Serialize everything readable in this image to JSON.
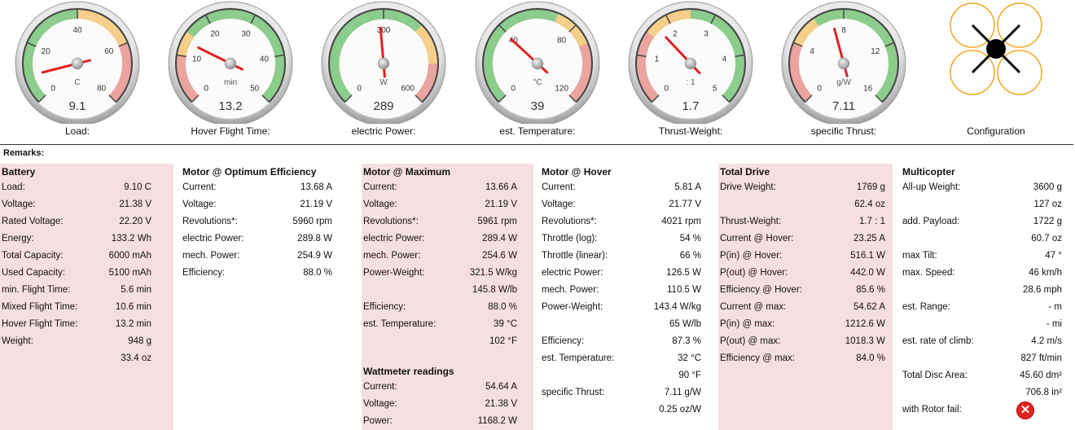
{
  "gauges": [
    {
      "id": "load",
      "label": "Load:",
      "unit": "C",
      "value": "9.1",
      "needle": 9.1,
      "min": 0,
      "max": 80,
      "ticks": [
        "0",
        "20",
        "40",
        "60",
        "80"
      ],
      "bands": [
        {
          "from": 0,
          "to": 40,
          "color": "#8ccc8c"
        },
        {
          "from": 40,
          "to": 60,
          "color": "#f5cf8a"
        },
        {
          "from": 60,
          "to": 80,
          "color": "#eca4a0"
        }
      ]
    },
    {
      "id": "hover-flight-time",
      "label": "Hover Flight Time:",
      "unit": "min",
      "value": "13.2",
      "needle": 13.2,
      "min": 0,
      "max": 50,
      "ticks": [
        "0",
        "10",
        "20",
        "30",
        "40",
        "50"
      ],
      "bands": [
        {
          "from": 0,
          "to": 10,
          "color": "#eca4a0"
        },
        {
          "from": 10,
          "to": 15,
          "color": "#f5cf8a"
        },
        {
          "from": 15,
          "to": 50,
          "color": "#8ccc8c"
        }
      ]
    },
    {
      "id": "electric-power",
      "label": "electric Power:",
      "unit": "W",
      "value": "289",
      "needle": 289,
      "min": 0,
      "max": 600,
      "ticks": [
        "0",
        "300",
        "600"
      ],
      "bands": [
        {
          "from": 0,
          "to": 400,
          "color": "#8ccc8c"
        },
        {
          "from": 400,
          "to": 500,
          "color": "#f5cf8a"
        },
        {
          "from": 500,
          "to": 600,
          "color": "#eca4a0"
        }
      ]
    },
    {
      "id": "est-temperature",
      "label": "est. Temperature:",
      "unit": "°C",
      "value": "39",
      "needle": 39,
      "min": 0,
      "max": 120,
      "ticks": [
        "0",
        "40",
        "80",
        "120"
      ],
      "bands": [
        {
          "from": 0,
          "to": 70,
          "color": "#8ccc8c"
        },
        {
          "from": 70,
          "to": 90,
          "color": "#f5cf8a"
        },
        {
          "from": 90,
          "to": 120,
          "color": "#eca4a0"
        }
      ]
    },
    {
      "id": "thrust-weight",
      "label": "Thrust-Weight:",
      "unit": ": 1",
      "value": "1.7",
      "needle": 1.7,
      "min": 0,
      "max": 5,
      "ticks": [
        "0",
        "1",
        "2",
        "3",
        "4",
        "5"
      ],
      "bands": [
        {
          "from": 0,
          "to": 1.5,
          "color": "#eca4a0"
        },
        {
          "from": 1.5,
          "to": 2.5,
          "color": "#f5cf8a"
        },
        {
          "from": 2.5,
          "to": 5,
          "color": "#8ccc8c"
        }
      ]
    },
    {
      "id": "specific-thrust",
      "label": "specific Thrust:",
      "unit": "g/W",
      "value": "7.11",
      "needle": 7.11,
      "min": 0,
      "max": 16,
      "ticks": [
        "0",
        "4",
        "8",
        "12",
        "16"
      ],
      "bands": [
        {
          "from": 0,
          "to": 4,
          "color": "#eca4a0"
        },
        {
          "from": 4,
          "to": 6,
          "color": "#f5cf8a"
        },
        {
          "from": 6,
          "to": 16,
          "color": "#8ccc8c"
        }
      ]
    }
  ],
  "config": {
    "label": "Configuration",
    "rotor_color": "#f5a623",
    "hub_color": "#000000"
  },
  "remarks_label": "Remarks:",
  "panels": {
    "battery": {
      "title": "Battery",
      "rows": [
        {
          "k": "Load:",
          "v": "9.10 C"
        },
        {
          "k": "Voltage:",
          "v": "21.38 V"
        },
        {
          "k": "Rated Voltage:",
          "v": "22.20 V"
        },
        {
          "k": "Energy:",
          "v": "133.2 Wh"
        },
        {
          "k": "Total Capacity:",
          "v": "6000 mAh"
        },
        {
          "k": "Used Capacity:",
          "v": "5100 mAh"
        },
        {
          "k": "min. Flight Time:",
          "v": "5.6 min"
        },
        {
          "k": "Mixed Flight Time:",
          "v": "10.6 min"
        },
        {
          "k": "Hover Flight Time:",
          "v": "13.2 min"
        },
        {
          "k": "Weight:",
          "v": "948 g"
        },
        {
          "k": "",
          "v": "33.4 oz"
        }
      ]
    },
    "motor_opt": {
      "title": "Motor @ Optimum Efficiency",
      "rows": [
        {
          "k": "Current:",
          "v": "13.68 A"
        },
        {
          "k": "Voltage:",
          "v": "21.19 V"
        },
        {
          "k": "Revolutions*:",
          "v": "5960 rpm"
        },
        {
          "k": "electric Power:",
          "v": "289.8 W"
        },
        {
          "k": "mech. Power:",
          "v": "254.9 W"
        },
        {
          "k": "Efficiency:",
          "v": "88.0 %"
        }
      ]
    },
    "motor_max": {
      "title": "Motor @ Maximum",
      "rows": [
        {
          "k": "Current:",
          "v": "13.66 A"
        },
        {
          "k": "Voltage:",
          "v": "21.19 V"
        },
        {
          "k": "Revolutions*:",
          "v": "5961 rpm"
        },
        {
          "k": "electric Power:",
          "v": "289.4 W"
        },
        {
          "k": "mech. Power:",
          "v": "254.6 W"
        },
        {
          "k": "Power-Weight:",
          "v": "321.5 W/kg"
        },
        {
          "k": "",
          "v": "145.8 W/lb"
        },
        {
          "k": "Efficiency:",
          "v": "88.0 %"
        },
        {
          "k": "est. Temperature:",
          "v": "39 °C"
        },
        {
          "k": "",
          "v": "102 °F"
        }
      ]
    },
    "wattmeter": {
      "title": "Wattmeter readings",
      "rows": [
        {
          "k": "Current:",
          "v": "54.64 A"
        },
        {
          "k": "Voltage:",
          "v": "21.38 V"
        },
        {
          "k": "Power:",
          "v": "1168.2 W"
        }
      ]
    },
    "motor_hover": {
      "title": "Motor @ Hover",
      "rows": [
        {
          "k": "Current:",
          "v": "5.81 A"
        },
        {
          "k": "Voltage:",
          "v": "21.77 V"
        },
        {
          "k": "Revolutions*:",
          "v": "4021 rpm"
        },
        {
          "k": "Throttle (log):",
          "v": "54 %"
        },
        {
          "k": "Throttle (linear):",
          "v": "66 %"
        },
        {
          "k": "electric Power:",
          "v": "126.5 W"
        },
        {
          "k": "mech. Power:",
          "v": "110.5 W"
        },
        {
          "k": "Power-Weight:",
          "v": "143.4 W/kg"
        },
        {
          "k": "",
          "v": "65 W/lb"
        },
        {
          "k": "Efficiency:",
          "v": "87.3 %"
        },
        {
          "k": "est. Temperature:",
          "v": "32 °C"
        },
        {
          "k": "",
          "v": "90 °F"
        },
        {
          "k": "specific Thrust:",
          "v": "7.11 g/W"
        },
        {
          "k": "",
          "v": "0.25 oz/W"
        }
      ]
    },
    "total_drive": {
      "title": "Total Drive",
      "rows": [
        {
          "k": "Drive Weight:",
          "v": "1769 g"
        },
        {
          "k": "",
          "v": "62.4 oz"
        },
        {
          "k": "Thrust-Weight:",
          "v": "1.7 : 1"
        },
        {
          "k": "Current @ Hover:",
          "v": "23.25 A"
        },
        {
          "k": "P(in) @ Hover:",
          "v": "516.1 W"
        },
        {
          "k": "P(out) @ Hover:",
          "v": "442.0 W"
        },
        {
          "k": "Efficiency @ Hover:",
          "v": "85.6 %"
        },
        {
          "k": "Current @ max:",
          "v": "54.62 A"
        },
        {
          "k": "P(in) @ max:",
          "v": "1212.6 W"
        },
        {
          "k": "P(out) @ max:",
          "v": "1018.3 W"
        },
        {
          "k": "Efficiency @ max:",
          "v": "84.0 %"
        }
      ]
    },
    "multicopter": {
      "title": "Multicopter",
      "rows": [
        {
          "k": "All-up Weight:",
          "v": "3600 g"
        },
        {
          "k": "",
          "v": "127 oz"
        },
        {
          "k": "add. Payload:",
          "v": "1722 g"
        },
        {
          "k": "",
          "v": "60.7 oz"
        },
        {
          "k": "max Tilt:",
          "v": "47 °"
        },
        {
          "k": "max. Speed:",
          "v": "46 km/h"
        },
        {
          "k": "",
          "v": "28.6 mph"
        },
        {
          "k": "est. Range:",
          "v": "- m"
        },
        {
          "k": "",
          "v": "- mi"
        },
        {
          "k": "est. rate of climb:",
          "v": "4.2 m/s"
        },
        {
          "k": "",
          "v": "827 ft/min"
        },
        {
          "k": "Total Disc Area:",
          "v": "45.60 dm²"
        },
        {
          "k": "",
          "v": "706.8 in²"
        }
      ],
      "rotor_fail": {
        "label": "with Rotor fail:",
        "icon": "fail-x-icon",
        "symbol": "✕"
      }
    }
  }
}
